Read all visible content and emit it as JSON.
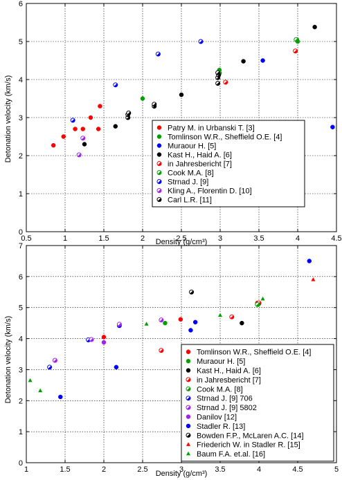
{
  "chart_data": [
    {
      "type": "scatter",
      "xlabel": "Density (g/cm³)",
      "ylabel": "Detonation velocity (km/s)",
      "xlim": [
        0.5,
        4.5
      ],
      "ylim": [
        0,
        6
      ],
      "xticks": [
        "0.5",
        "1",
        "1.5",
        "2",
        "2.5",
        "3",
        "3.5",
        "4",
        "4.5"
      ],
      "yticks": [
        "0",
        "1",
        "2",
        "3",
        "4",
        "5",
        "6"
      ],
      "grid": true,
      "legend_position": "lower-right",
      "series": [
        {
          "name": "Patry M. in Urbanski T. [3]",
          "color": "#ff0000",
          "marker": "filled-circle",
          "points": [
            [
              0.85,
              2.27
            ],
            [
              0.98,
              2.5
            ],
            [
              1.13,
              2.7
            ],
            [
              1.23,
              2.7
            ],
            [
              1.33,
              3.0
            ],
            [
              1.43,
              2.7
            ],
            [
              1.45,
              3.3
            ]
          ]
        },
        {
          "name": "Tomlinson W.R., Sheffield O.E. [4]",
          "color": "#00a000",
          "marker": "filled-circle",
          "points": [
            [
              2.0,
              3.5
            ],
            [
              2.99,
              4.25
            ],
            [
              3.99,
              5.05
            ],
            [
              4.0,
              5.0
            ]
          ]
        },
        {
          "name": "Muraour H. [5]",
          "color": "#0000ff",
          "marker": "filled-circle",
          "points": [
            [
              3.55,
              4.5
            ],
            [
              4.45,
              2.75
            ]
          ]
        },
        {
          "name": "Kast H., Haid A. [6]",
          "color": "#000000",
          "marker": "filled-circle",
          "points": [
            [
              1.25,
              2.3
            ],
            [
              1.65,
              2.77
            ],
            [
              2.5,
              3.6
            ],
            [
              3.3,
              4.48
            ],
            [
              4.22,
              5.38
            ]
          ]
        },
        {
          "name": "in Jahresbericht [7]",
          "color": "#ff0000",
          "marker": "half-circle",
          "points": [
            [
              3.07,
              3.93
            ],
            [
              3.97,
              4.75
            ]
          ]
        },
        {
          "name": "Cook M.A. [8]",
          "color": "#00a000",
          "marker": "half-circle",
          "points": [
            [
              2.99,
              4.17
            ],
            [
              3.98,
              5.05
            ]
          ]
        },
        {
          "name": "Strnad J. [9]",
          "color": "#0000ff",
          "marker": "half-circle",
          "points": [
            [
              1.1,
              2.93
            ],
            [
              1.65,
              3.86
            ],
            [
              2.2,
              4.67
            ],
            [
              2.75,
              5.0
            ]
          ]
        },
        {
          "name": "Kling A., Florentin D. [10]",
          "color": "#a020f0",
          "marker": "half-circle",
          "points": [
            [
              1.18,
              2.02
            ],
            [
              1.23,
              2.46
            ]
          ]
        },
        {
          "name": "Carl L.R. [11]",
          "color": "#000000",
          "marker": "half-circle",
          "points": [
            [
              1.81,
              3.0
            ],
            [
              1.81,
              3.08
            ],
            [
              1.82,
              3.12
            ],
            [
              2.15,
              3.3
            ],
            [
              2.15,
              3.35
            ],
            [
              2.97,
              3.9
            ],
            [
              2.97,
              4.05
            ],
            [
              2.98,
              4.12
            ],
            [
              2.97,
              4.18
            ]
          ]
        }
      ]
    },
    {
      "type": "scatter",
      "xlabel": "Density (g/cm³)",
      "ylabel": "Detonation velocity (km/s)",
      "xlim": [
        1,
        5
      ],
      "ylim": [
        0,
        7
      ],
      "xticks": [
        "1",
        "1.5",
        "2",
        "2.5",
        "3",
        "3.5",
        "4",
        "4.5",
        "5"
      ],
      "yticks": [
        "0",
        "1",
        "2",
        "3",
        "4",
        "5",
        "6",
        "7"
      ],
      "grid": true,
      "legend_position": "lower-right",
      "series": [
        {
          "name": "Tomlinson W.R., Sheffield O.E. [4]",
          "color": "#ff0000",
          "marker": "filled-circle",
          "points": [
            [
              2.0,
              4.05
            ],
            [
              2.99,
              4.62
            ],
            [
              3.98,
              5.15
            ]
          ]
        },
        {
          "name": "Muraour H. [5]",
          "color": "#00a000",
          "marker": "filled-circle",
          "points": [
            [
              2.79,
              4.5
            ],
            [
              4.0,
              5.12
            ]
          ]
        },
        {
          "name": "Kast H., Haid A. [6]",
          "color": "#000000",
          "marker": "filled-circle",
          "points": [
            [
              3.78,
              4.5
            ]
          ]
        },
        {
          "name": "in Jahresbericht [7]",
          "color": "#ff0000",
          "marker": "half-circle",
          "points": [
            [
              2.74,
              3.62
            ],
            [
              3.65,
              4.7
            ],
            [
              4.0,
              5.15
            ]
          ]
        },
        {
          "name": "Cook M.A. [8]",
          "color": "#00a000",
          "marker": "half-circle",
          "points": [
            [
              3.98,
              5.1
            ]
          ]
        },
        {
          "name": "Strnad J. [9] 706",
          "color": "#0000ff",
          "marker": "half-circle",
          "points": [
            [
              1.3,
              3.08
            ],
            [
              1.8,
              3.96
            ],
            [
              2.2,
              4.42
            ]
          ]
        },
        {
          "name": "Strnad J. [9] 5802",
          "color": "#a020f0",
          "marker": "half-circle",
          "points": [
            [
              1.37,
              3.3
            ],
            [
              1.84,
              3.97
            ],
            [
              2.2,
              4.46
            ],
            [
              2.74,
              4.6
            ]
          ]
        },
        {
          "name": "Danilov [12]",
          "color": "#a020f0",
          "marker": "filled-circle",
          "points": [
            [
              2.0,
              3.88
            ]
          ]
        },
        {
          "name": "Stadler R. [13]",
          "color": "#0000ff",
          "marker": "filled-circle",
          "points": [
            [
              1.44,
              2.12
            ],
            [
              2.16,
              3.08
            ],
            [
              3.12,
              4.27
            ],
            [
              3.18,
              4.53
            ],
            [
              4.65,
              6.5
            ]
          ]
        },
        {
          "name": "Bowden F.P., McLaren A.C. [14]",
          "color": "#000000",
          "marker": "half-circle",
          "points": [
            [
              3.13,
              5.5
            ]
          ]
        },
        {
          "name": "Friederich W. in Stadler R. [15]",
          "color": "#ff0000",
          "marker": "triangle",
          "points": [
            [
              4.7,
              5.9
            ]
          ]
        },
        {
          "name": "Baum F.A. et.al. [16]",
          "color": "#00a000",
          "marker": "triangle",
          "points": [
            [
              1.05,
              2.65
            ],
            [
              1.18,
              2.32
            ],
            [
              2.55,
              4.47
            ],
            [
              3.5,
              4.75
            ],
            [
              4.05,
              5.28
            ]
          ]
        }
      ]
    }
  ]
}
